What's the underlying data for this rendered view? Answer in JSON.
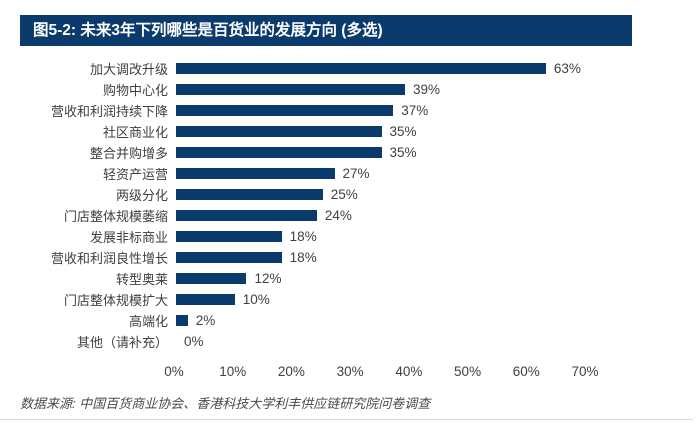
{
  "header": {
    "title": "图5-2: 未来3年下列哪些是百货业的发展方向 (多选)",
    "bg_color": "#0b3a6d",
    "text_color": "#ffffff"
  },
  "chart_data": {
    "type": "bar",
    "orientation": "horizontal",
    "title": "未来3年下列哪些是百货业的发展方向 (多选)",
    "categories": [
      "加大调改升级",
      "购物中心化",
      "营收和利润持续下降",
      "社区商业化",
      "整合并购增多",
      "轻资产运营",
      "两级分化",
      "门店整体规模萎缩",
      "发展非标商业",
      "营收和利润良性增长",
      "转型奥莱",
      "门店整体规模扩大",
      "高端化",
      "其他（请补充）"
    ],
    "values": [
      63,
      39,
      37,
      35,
      35,
      27,
      25,
      24,
      18,
      18,
      12,
      10,
      2,
      0
    ],
    "value_labels": [
      "63%",
      "39%",
      "37%",
      "35%",
      "35%",
      "27%",
      "25%",
      "24%",
      "18%",
      "18%",
      "12%",
      "10%",
      "2%",
      "0%"
    ],
    "xlabel": "",
    "ylabel": "",
    "xlim": [
      0,
      70
    ],
    "x_ticks": [
      0,
      10,
      20,
      30,
      40,
      50,
      60,
      70
    ],
    "x_tick_labels": [
      "0%",
      "10%",
      "20%",
      "30%",
      "40%",
      "50%",
      "60%",
      "70%"
    ],
    "grid": false,
    "legend": false,
    "data_labels": true,
    "bar_color": "#0b3a6d"
  },
  "footer": {
    "source_note": "数据来源: 中国百货商业协会、香港科技大学利丰供应链研究院问卷调查"
  }
}
